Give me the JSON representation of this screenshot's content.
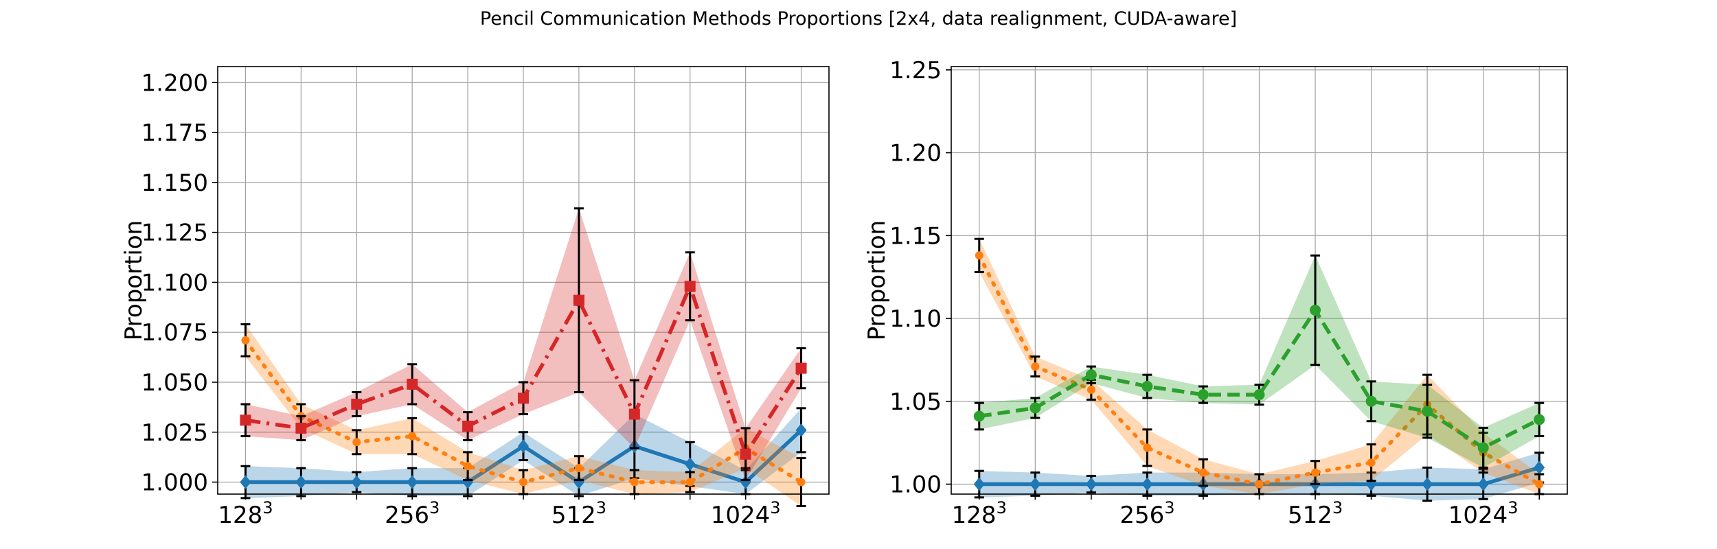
{
  "figure_title": "Pencil Communication Methods Proportions [2x4, data realignment, CUDA-aware]",
  "colors": {
    "blue": "#1f77b4",
    "orange": "#ff7f0e",
    "green": "#2ca02c",
    "red": "#d62728",
    "grid": "#a0a0a0",
    "errorbar": "#000000"
  },
  "chart_data": [
    {
      "type": "line",
      "ylabel": "Proportion",
      "xlabel": "",
      "x": [
        1,
        2,
        3,
        4,
        5,
        6,
        7,
        8,
        9,
        10,
        11
      ],
      "xticks": [
        {
          "x": 1,
          "base": "128",
          "sup": "3"
        },
        {
          "x": 4,
          "base": "256",
          "sup": "3"
        },
        {
          "x": 7,
          "base": "512",
          "sup": "3"
        },
        {
          "x": 10,
          "base": "1024",
          "sup": "3"
        }
      ],
      "xlim": [
        0.5,
        11.5
      ],
      "ylim": [
        0.994,
        1.208
      ],
      "yticks": [
        1.0,
        1.025,
        1.05,
        1.075,
        1.1,
        1.125,
        1.15,
        1.175,
        1.2
      ],
      "ytick_labels": [
        "1.000",
        "1.025",
        "1.050",
        "1.075",
        "1.100",
        "1.125",
        "1.150",
        "1.175",
        "1.200"
      ],
      "grid": true,
      "series": [
        {
          "color": "blue",
          "linestyle": "solid",
          "marker": "diamond",
          "values": [
            1.0,
            1.0,
            1.0,
            1.0,
            1.0,
            1.018,
            1.0,
            1.018,
            1.009,
            1.0,
            1.026
          ],
          "err": [
            0.008,
            0.007,
            0.005,
            0.007,
            0.007,
            0.007,
            0.007,
            0.016,
            0.011,
            0.006,
            0.011
          ]
        },
        {
          "color": "orange",
          "linestyle": "dotted",
          "marker": "circle",
          "values": [
            1.071,
            1.033,
            1.02,
            1.023,
            1.008,
            1.0,
            1.007,
            1.0,
            1.0,
            1.017,
            1.0
          ],
          "err": [
            0.008,
            0.006,
            0.006,
            0.009,
            0.007,
            0.006,
            0.006,
            0.006,
            0.005,
            0.01,
            0.012
          ]
        },
        {
          "color": "red",
          "linestyle": "dashdot",
          "marker": "square",
          "values": [
            1.031,
            1.027,
            1.039,
            1.049,
            1.028,
            1.042,
            1.091,
            1.034,
            1.098,
            1.014,
            1.057
          ],
          "err": [
            0.008,
            0.006,
            0.006,
            0.01,
            0.007,
            0.008,
            0.046,
            0.017,
            0.017,
            0.013,
            0.01
          ]
        }
      ]
    },
    {
      "type": "line",
      "ylabel": "Proportion",
      "xlabel": "",
      "x": [
        1,
        2,
        3,
        4,
        5,
        6,
        7,
        8,
        9,
        10,
        11
      ],
      "xticks": [
        {
          "x": 1,
          "base": "128",
          "sup": "3"
        },
        {
          "x": 4,
          "base": "256",
          "sup": "3"
        },
        {
          "x": 7,
          "base": "512",
          "sup": "3"
        },
        {
          "x": 10,
          "base": "1024",
          "sup": "3"
        }
      ],
      "xlim": [
        0.5,
        11.5
      ],
      "ylim": [
        0.994,
        1.252
      ],
      "yticks": [
        1.0,
        1.05,
        1.1,
        1.15,
        1.2,
        1.25
      ],
      "ytick_labels": [
        "1.00",
        "1.05",
        "1.10",
        "1.15",
        "1.20",
        "1.25"
      ],
      "grid": true,
      "series": [
        {
          "color": "blue",
          "linestyle": "solid",
          "marker": "diamond",
          "values": [
            1.0,
            1.0,
            1.0,
            1.0,
            1.0,
            1.0,
            1.0,
            1.0,
            1.0,
            1.0,
            1.01
          ],
          "err": [
            0.008,
            0.007,
            0.005,
            0.007,
            0.007,
            0.006,
            0.006,
            0.007,
            0.01,
            0.009,
            0.009
          ]
        },
        {
          "color": "orange",
          "linestyle": "dotted",
          "marker": "circle",
          "values": [
            1.138,
            1.071,
            1.057,
            1.022,
            1.007,
            1.0,
            1.007,
            1.013,
            1.048,
            1.019,
            1.0
          ],
          "err": [
            0.01,
            0.006,
            0.006,
            0.011,
            0.008,
            0.006,
            0.007,
            0.011,
            0.018,
            0.012,
            0.006
          ]
        },
        {
          "color": "green",
          "linestyle": "dashed",
          "marker": "circle",
          "values": [
            1.041,
            1.046,
            1.066,
            1.059,
            1.054,
            1.054,
            1.105,
            1.05,
            1.044,
            1.022,
            1.039
          ],
          "err": [
            0.008,
            0.006,
            0.005,
            0.007,
            0.005,
            0.006,
            0.033,
            0.012,
            0.016,
            0.012,
            0.01
          ]
        }
      ]
    }
  ]
}
